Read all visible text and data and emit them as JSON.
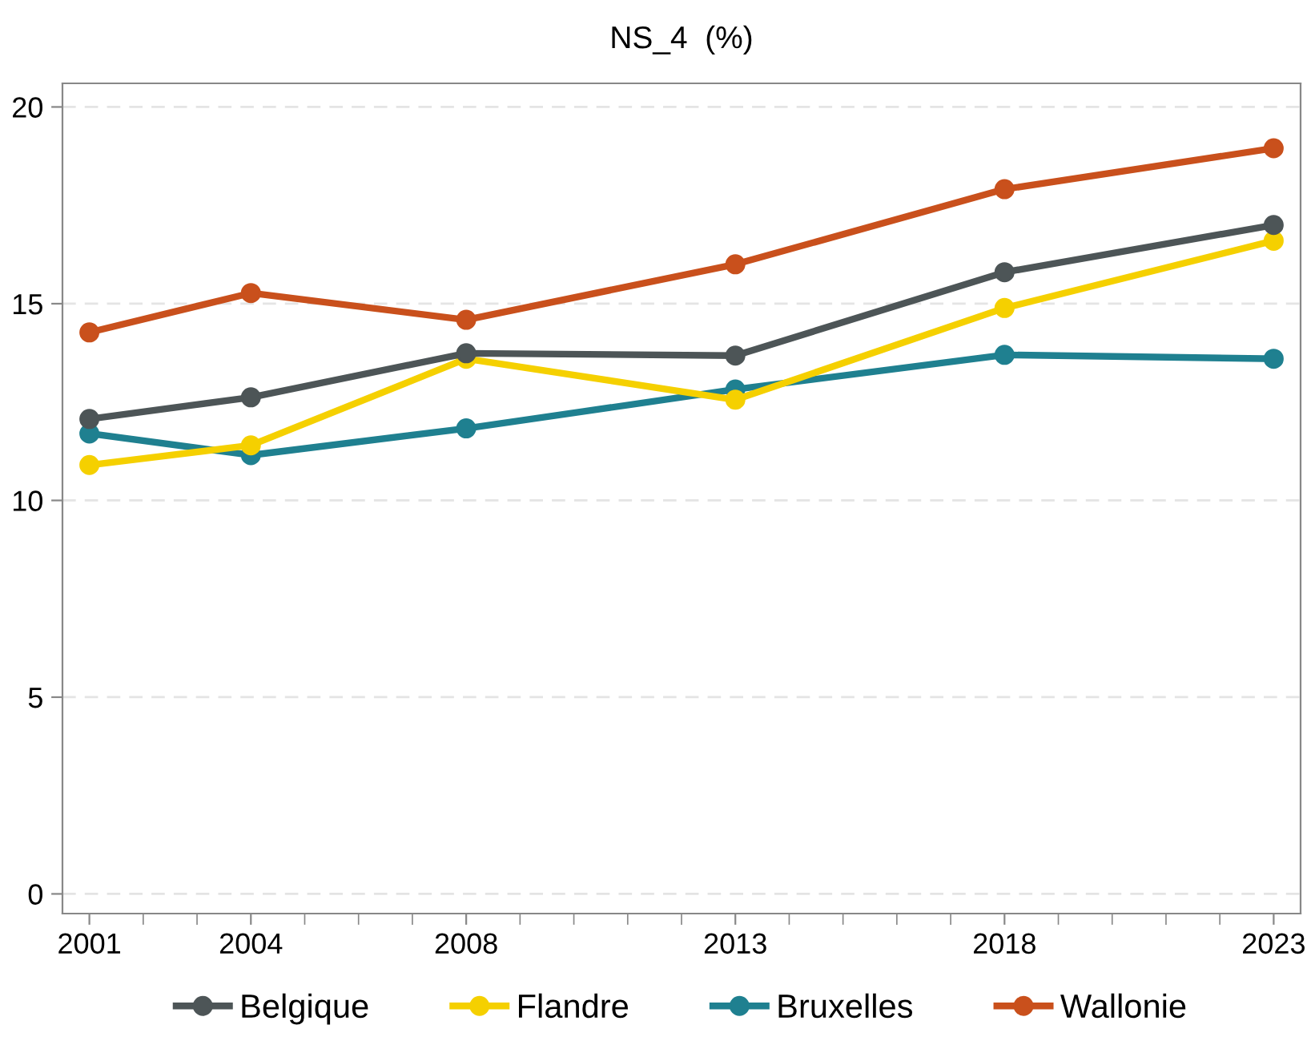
{
  "chart_data": {
    "type": "line",
    "title": "NS_4  (%)",
    "x": [
      2001,
      2004,
      2008,
      2013,
      2018,
      2023
    ],
    "xlim": [
      2000.5,
      2023.5
    ],
    "xticks": [
      2001,
      2004,
      2008,
      2013,
      2018,
      2023
    ],
    "ylim": [
      -0.5,
      20.6
    ],
    "yticks": [
      0,
      5,
      10,
      15,
      20
    ],
    "grid": "y",
    "legend": "bottom",
    "marker": "circle",
    "line_style": "solid",
    "series": [
      {
        "name": "Belgique",
        "color": "#4d5557",
        "values": [
          12.07,
          12.62,
          13.74,
          13.68,
          15.8,
          17.0
        ]
      },
      {
        "name": "Flandre",
        "color": "#f5d000",
        "values": [
          10.9,
          11.4,
          13.6,
          12.56,
          14.89,
          16.6
        ]
      },
      {
        "name": "Bruxelles",
        "color": "#1f8090",
        "values": [
          11.7,
          11.15,
          11.83,
          12.82,
          13.7,
          13.6
        ]
      },
      {
        "name": "Wallonie",
        "color": "#c9501c",
        "values": [
          14.27,
          15.27,
          14.59,
          16.0,
          17.91,
          18.95
        ]
      }
    ]
  }
}
